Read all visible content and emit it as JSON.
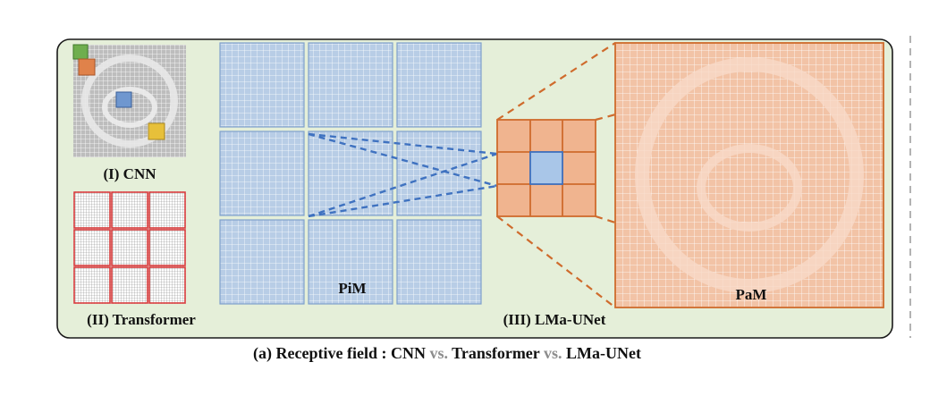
{
  "panels": {
    "cnn_label": "(I) CNN",
    "transformer_label": "(II) Transformer",
    "lmaunet_label": "(III) LMa-UNet",
    "pim_label": "PiM",
    "pam_label": "PaM"
  },
  "caption": {
    "prefix": "(a) Receptive field : ",
    "cnn": "CNN",
    "vs1": " vs. ",
    "transformer": "Transformer",
    "vs2": " vs. ",
    "lmaunet": "LMa-UNet"
  },
  "colors": {
    "panel_bg": "#e5efd9",
    "panel_border": "#1a1a1a",
    "gray_grid": "#9e9e9e",
    "blue_patch": "#b8cde6",
    "blue_line": "#3f72c0",
    "orange_patch": "#f0b48f",
    "orange_line": "#cf6b2c",
    "red_window": "#d63a3a",
    "green_kernel": "#6fae4e",
    "yellow_kernel": "#e7c03a",
    "vs_gray": "#8c8c8c"
  },
  "icons": {
    "cnn_thumbnail": "ct-slice-grid-icon",
    "transformer_thumbnail": "windowed-grid-icon"
  }
}
